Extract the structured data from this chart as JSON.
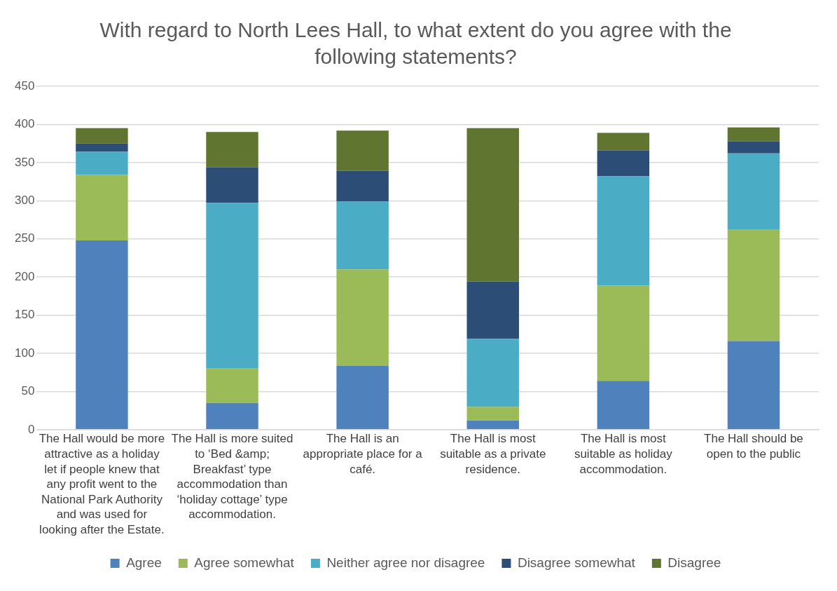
{
  "chart_data": {
    "type": "bar",
    "stacked": true,
    "title": "With regard to North Lees Hall, to what extent do you agree with the following statements?",
    "categories": [
      "The Hall would be more attractive as a holiday let if people knew that any profit went to the National Park Authority and was used for looking after the Estate.",
      "The Hall is more suited to ‘Bed &amp; Breakfast’ type accommodation than ‘holiday cottage’ type accommodation.",
      "The Hall is an appropriate place for a café.",
      "The Hall is most suitable as a private residence.",
      "The Hall is most suitable as holiday accommodation.",
      "The Hall should be open to the public"
    ],
    "series": [
      {
        "name": "Agree",
        "color": "#4f81bd",
        "values": [
          248,
          35,
          84,
          12,
          64,
          116
        ]
      },
      {
        "name": "Agree somewhat",
        "color": "#9bbb59",
        "values": [
          86,
          45,
          126,
          18,
          125,
          146
        ]
      },
      {
        "name": "Neither agree nor disagree",
        "color": "#4bacc6",
        "values": [
          30,
          217,
          89,
          89,
          143,
          100
        ]
      },
      {
        "name": "Disagree somewhat",
        "color": "#2c4d75",
        "values": [
          11,
          47,
          40,
          75,
          34,
          16
        ]
      },
      {
        "name": "Disagree",
        "color": "#60752f",
        "values": [
          20,
          46,
          53,
          201,
          23,
          18
        ]
      }
    ],
    "ylim": [
      0,
      450
    ],
    "yticks": [
      0,
      50,
      100,
      150,
      200,
      250,
      300,
      350,
      400,
      450
    ],
    "grid": "y",
    "legend": "bottom"
  }
}
